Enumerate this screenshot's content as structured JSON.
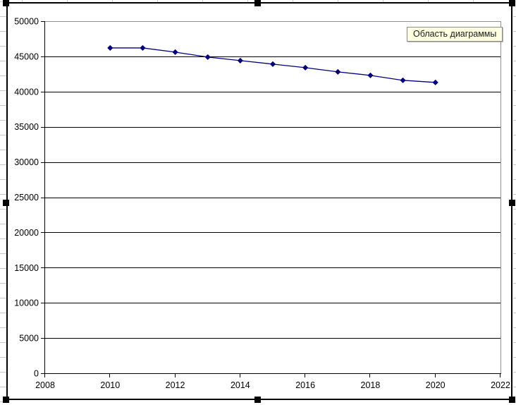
{
  "tooltip": {
    "label": "Область диаграммы"
  },
  "colors": {
    "series": "#000080",
    "gridline": "#000000",
    "axis": "#000000",
    "plot_border": "#8f8f8f",
    "label_text": "#000000",
    "tooltip_bg": "#ffffe1",
    "frame": "#000000",
    "sheet_grid": "#c9c9c9"
  },
  "chart_data": {
    "type": "line",
    "title": "",
    "xlabel": "",
    "ylabel": "",
    "legend_position": "none",
    "grid": "horizontal-only",
    "marker": "diamond",
    "xlim": [
      2008,
      2022
    ],
    "ylim": [
      0,
      50000
    ],
    "x_ticks": [
      2008,
      2010,
      2012,
      2014,
      2016,
      2018,
      2020,
      2022
    ],
    "y_ticks": [
      0,
      5000,
      10000,
      15000,
      20000,
      25000,
      30000,
      35000,
      40000,
      45000,
      50000
    ],
    "x": [
      2010,
      2011,
      2012,
      2013,
      2014,
      2015,
      2016,
      2017,
      2018,
      2019,
      2020
    ],
    "values": [
      46200,
      46200,
      45600,
      44900,
      44400,
      43900,
      43400,
      42800,
      42300,
      41600,
      41300
    ]
  }
}
